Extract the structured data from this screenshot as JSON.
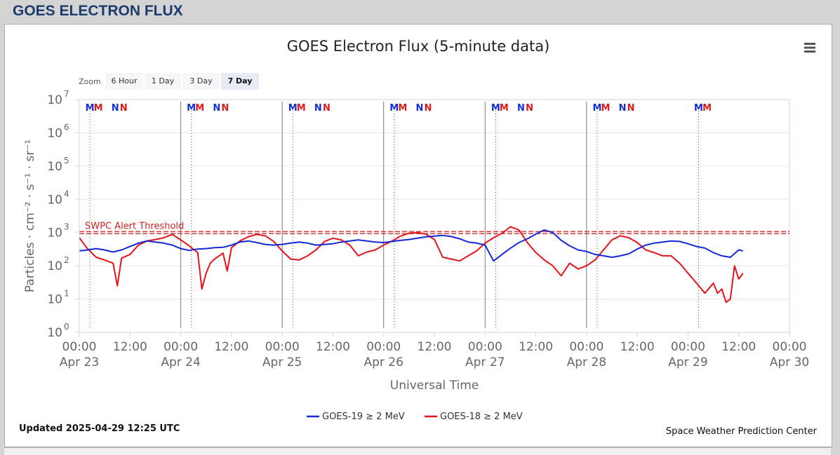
{
  "page": {
    "title": "GOES ELECTRON FLUX"
  },
  "chart_menu": {
    "icon": "hamburger-menu-icon"
  },
  "zoom": {
    "label": "Zoom",
    "buttons": [
      "6 Hour",
      "1 Day",
      "3 Day",
      "7 Day"
    ],
    "selected": "7 Day"
  },
  "footer": {
    "updated": "Updated 2025-04-29 12:25 UTC",
    "credit": "Space Weather Prediction Center"
  },
  "colors": {
    "goes19": "#1429d6",
    "goes18": "#e8121a",
    "threshold": "#d42020",
    "marker_blue": "#1330d6",
    "marker_red": "#e01a1a"
  },
  "chart_data": {
    "type": "line",
    "title": "GOES Electron Flux (5-minute data)",
    "xlabel": "Universal Time",
    "ylabel": "Particles · cm⁻² · s⁻¹ · sr⁻¹",
    "y_scale": "log",
    "ylim": [
      1,
      10000000
    ],
    "y_ticks": [
      {
        "base": "10",
        "exp": "0"
      },
      {
        "base": "10",
        "exp": "1"
      },
      {
        "base": "10",
        "exp": "2"
      },
      {
        "base": "10",
        "exp": "3"
      },
      {
        "base": "10",
        "exp": "4"
      },
      {
        "base": "10",
        "exp": "5"
      },
      {
        "base": "10",
        "exp": "6"
      },
      {
        "base": "10",
        "exp": "7"
      }
    ],
    "x_range_hours": [
      0,
      168
    ],
    "x_ticks": [
      {
        "time": "00:00",
        "date": "Apr 23"
      },
      {
        "time": "12:00",
        "date": ""
      },
      {
        "time": "00:00",
        "date": "Apr 24"
      },
      {
        "time": "12:00",
        "date": ""
      },
      {
        "time": "00:00",
        "date": "Apr 25"
      },
      {
        "time": "12:00",
        "date": ""
      },
      {
        "time": "00:00",
        "date": "Apr 26"
      },
      {
        "time": "12:00",
        "date": ""
      },
      {
        "time": "00:00",
        "date": "Apr 27"
      },
      {
        "time": "12:00",
        "date": ""
      },
      {
        "time": "00:00",
        "date": "Apr 28"
      },
      {
        "time": "12:00",
        "date": ""
      },
      {
        "time": "00:00",
        "date": "Apr 29"
      },
      {
        "time": "12:00",
        "date": ""
      },
      {
        "time": "00:00",
        "date": "Apr 30"
      }
    ],
    "grid": true,
    "legend_position": "bottom-center",
    "threshold": {
      "label": "SWPC Alert Threshold",
      "value": 1000
    },
    "day_lines_hours": [
      24,
      48,
      72,
      96,
      120
    ],
    "markers": [
      {
        "hour": 2.5,
        "label": "M",
        "color": "blue",
        "dotted": true
      },
      {
        "hour": 4.5,
        "label": "M",
        "color": "red",
        "dotted": false
      },
      {
        "hour": 8.5,
        "label": "N",
        "color": "blue",
        "dotted": false
      },
      {
        "hour": 10.5,
        "label": "N",
        "color": "red",
        "dotted": false
      },
      {
        "hour": 26.5,
        "label": "M",
        "color": "blue",
        "dotted": true
      },
      {
        "hour": 28.5,
        "label": "M",
        "color": "red",
        "dotted": false
      },
      {
        "hour": 32.5,
        "label": "N",
        "color": "blue",
        "dotted": false
      },
      {
        "hour": 34.5,
        "label": "N",
        "color": "red",
        "dotted": false
      },
      {
        "hour": 50.5,
        "label": "M",
        "color": "blue",
        "dotted": true
      },
      {
        "hour": 52.5,
        "label": "M",
        "color": "red",
        "dotted": false
      },
      {
        "hour": 56.5,
        "label": "N",
        "color": "blue",
        "dotted": false
      },
      {
        "hour": 58.5,
        "label": "N",
        "color": "red",
        "dotted": false
      },
      {
        "hour": 74.5,
        "label": "M",
        "color": "blue",
        "dotted": true
      },
      {
        "hour": 76.5,
        "label": "M",
        "color": "red",
        "dotted": false
      },
      {
        "hour": 80.5,
        "label": "N",
        "color": "blue",
        "dotted": false
      },
      {
        "hour": 82.5,
        "label": "N",
        "color": "red",
        "dotted": false
      },
      {
        "hour": 98.5,
        "label": "M",
        "color": "blue",
        "dotted": true
      },
      {
        "hour": 100.5,
        "label": "M",
        "color": "red",
        "dotted": false
      },
      {
        "hour": 104.5,
        "label": "N",
        "color": "blue",
        "dotted": false
      },
      {
        "hour": 106.5,
        "label": "N",
        "color": "red",
        "dotted": false
      },
      {
        "hour": 122.5,
        "label": "M",
        "color": "blue",
        "dotted": true
      },
      {
        "hour": 124.5,
        "label": "M",
        "color": "red",
        "dotted": false
      },
      {
        "hour": 128.5,
        "label": "N",
        "color": "blue",
        "dotted": false
      },
      {
        "hour": 130.5,
        "label": "N",
        "color": "red",
        "dotted": false
      },
      {
        "hour": 146.5,
        "label": "M",
        "color": "blue",
        "dotted": true
      },
      {
        "hour": 148.5,
        "label": "M",
        "color": "red",
        "dotted": false
      }
    ],
    "series": [
      {
        "name": "GOES-19 ≥ 2 MeV",
        "color": "#1429d6",
        "x": [
          0,
          2,
          4,
          6,
          8,
          10,
          12,
          14,
          16,
          18,
          20,
          22,
          24,
          26,
          28,
          30,
          32,
          34,
          36,
          38,
          40,
          42,
          44,
          46,
          48,
          50,
          52,
          54,
          56,
          58,
          60,
          62,
          64,
          66,
          68,
          70,
          72,
          74,
          76,
          78,
          80,
          82,
          84,
          86,
          88,
          90,
          92,
          94,
          96,
          98,
          100,
          102,
          104,
          106,
          108,
          110,
          112,
          114,
          116,
          118,
          120,
          122,
          124,
          126,
          128,
          130,
          132,
          134,
          136,
          138,
          140,
          142,
          144,
          146,
          148,
          150,
          152,
          154,
          156,
          157
        ],
        "y": [
          280,
          300,
          330,
          300,
          260,
          300,
          380,
          480,
          560,
          520,
          480,
          420,
          330,
          290,
          320,
          330,
          350,
          360,
          420,
          520,
          560,
          500,
          440,
          420,
          440,
          480,
          520,
          480,
          420,
          440,
          460,
          520,
          560,
          600,
          560,
          520,
          500,
          540,
          580,
          620,
          680,
          740,
          780,
          820,
          760,
          650,
          520,
          480,
          420,
          140,
          220,
          340,
          500,
          650,
          900,
          1200,
          1000,
          580,
          400,
          300,
          270,
          220,
          200,
          180,
          200,
          230,
          320,
          420,
          480,
          520,
          560,
          540,
          460,
          380,
          340,
          250,
          200,
          180,
          300,
          280
        ]
      },
      {
        "name": "GOES-18 ≥ 2 MeV",
        "color": "#e8121a",
        "x": [
          0,
          2,
          4,
          6,
          8,
          9,
          10,
          12,
          14,
          16,
          18,
          20,
          22,
          24,
          26,
          28,
          29,
          30,
          31,
          32,
          34,
          35,
          36,
          38,
          40,
          42,
          44,
          46,
          48,
          50,
          52,
          54,
          56,
          58,
          60,
          62,
          64,
          66,
          68,
          70,
          72,
          74,
          76,
          78,
          80,
          82,
          84,
          86,
          88,
          90,
          92,
          94,
          96,
          98,
          100,
          102,
          104,
          106,
          108,
          110,
          112,
          114,
          116,
          118,
          120,
          122,
          124,
          126,
          128,
          130,
          132,
          134,
          136,
          138,
          140,
          142,
          144,
          146,
          148,
          150,
          151,
          152,
          153,
          154,
          155,
          156,
          157
        ],
        "y": [
          700,
          320,
          180,
          150,
          120,
          25,
          170,
          220,
          420,
          560,
          620,
          700,
          880,
          600,
          400,
          250,
          20,
          60,
          120,
          160,
          240,
          70,
          350,
          560,
          750,
          880,
          800,
          540,
          280,
          160,
          150,
          200,
          300,
          540,
          680,
          600,
          420,
          200,
          260,
          300,
          420,
          560,
          780,
          960,
          1000,
          900,
          620,
          180,
          160,
          140,
          200,
          280,
          480,
          700,
          950,
          1500,
          1200,
          500,
          250,
          150,
          100,
          50,
          120,
          80,
          100,
          150,
          300,
          600,
          800,
          700,
          500,
          300,
          250,
          200,
          200,
          120,
          60,
          30,
          15,
          30,
          15,
          20,
          8,
          10,
          100,
          40,
          60
        ]
      }
    ]
  }
}
